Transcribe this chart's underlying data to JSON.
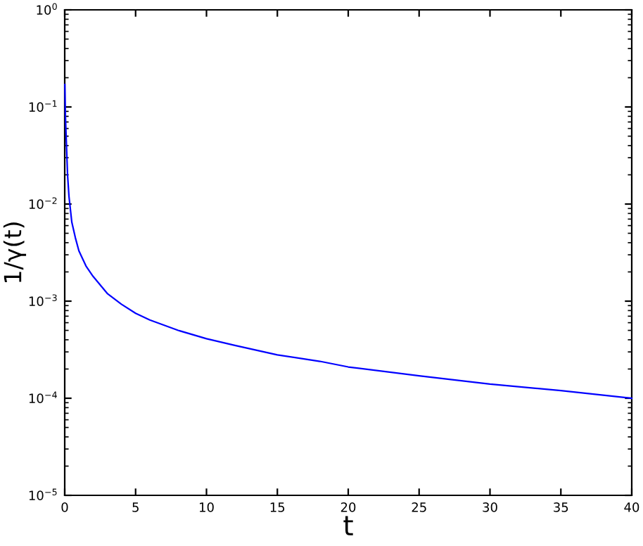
{
  "chart_data": {
    "type": "line",
    "xlabel": "t",
    "ylabel": "1/γ(t)",
    "log": "y",
    "xlim": [
      0,
      40
    ],
    "xticks": [
      0,
      5,
      10,
      15,
      20,
      25,
      30,
      35,
      40
    ],
    "ylim": [
      1e-05,
      1
    ],
    "yticks": [
      {
        "value": 1e-05,
        "label": "10$^{−5}$"
      },
      {
        "value": 0.0001,
        "label": "10$^{−4}$"
      },
      {
        "value": 0.001,
        "label": "10$^{−3}$"
      },
      {
        "value": 0.01,
        "label": "10$^{−2}$"
      },
      {
        "value": 0.1,
        "label": "10$^{−1}$"
      },
      {
        "value": 1,
        "label": "10$^{0}$"
      }
    ],
    "grid": false,
    "legend": false,
    "marker": "none",
    "line_style": "solid",
    "series": [
      {
        "color": "#0000ff",
        "x": [
          0.01,
          0.05,
          0.1,
          0.2,
          0.3,
          0.5,
          0.75,
          1,
          1.5,
          2,
          3,
          4,
          5,
          6,
          8,
          10,
          12,
          15,
          18,
          20,
          25,
          30,
          35,
          40
        ],
        "values": [
          0.17,
          0.08,
          0.05,
          0.02,
          0.012,
          0.0065,
          0.0045,
          0.0033,
          0.0023,
          0.0018,
          0.0012,
          0.00093,
          0.00075,
          0.00064,
          0.0005,
          0.00041,
          0.00035,
          0.00028,
          0.00024,
          0.00021,
          0.00017,
          0.00014,
          0.00012,
          0.0001
        ]
      }
    ]
  }
}
